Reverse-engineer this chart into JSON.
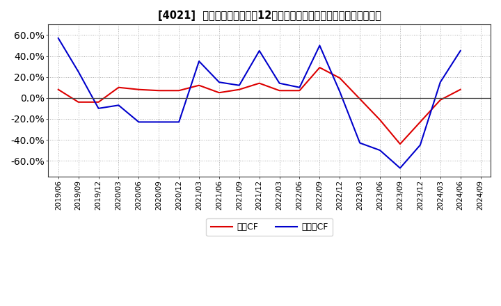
{
  "title": "[4021]  キャッシュフローの12か月移動合計の対前年同期増減率の推移",
  "x_labels": [
    "2019/06",
    "2019/09",
    "2019/12",
    "2020/03",
    "2020/06",
    "2020/09",
    "2020/12",
    "2021/03",
    "2021/06",
    "2021/09",
    "2021/12",
    "2022/03",
    "2022/06",
    "2022/09",
    "2022/12",
    "2023/03",
    "2023/06",
    "2023/09",
    "2023/12",
    "2024/03",
    "2024/06",
    "2024/09"
  ],
  "operating_cf_x": [
    0,
    1,
    2,
    3,
    4,
    5,
    6,
    7,
    8,
    9,
    10,
    11,
    12,
    13,
    14,
    16,
    17,
    19,
    20
  ],
  "operating_cf_y": [
    0.08,
    -0.04,
    -0.04,
    0.1,
    0.08,
    0.07,
    0.07,
    0.12,
    0.05,
    0.08,
    0.14,
    0.07,
    0.07,
    0.29,
    0.19,
    -0.21,
    -0.44,
    -0.02,
    0.08
  ],
  "free_cf_x": [
    0,
    1,
    2,
    3,
    4,
    5,
    6,
    7,
    8,
    9,
    10,
    11,
    12,
    13,
    14,
    15,
    16,
    17,
    18,
    19,
    20
  ],
  "free_cf_y": [
    0.57,
    0.25,
    -0.1,
    -0.07,
    -0.23,
    -0.23,
    -0.23,
    0.35,
    0.15,
    0.12,
    0.45,
    0.14,
    0.1,
    0.5,
    0.06,
    -0.43,
    -0.5,
    -0.67,
    -0.45,
    0.15,
    0.45
  ],
  "operating_color": "#dd0000",
  "free_color": "#0000cc",
  "ylim": [
    -0.75,
    0.7
  ],
  "yticks": [
    -0.6,
    -0.4,
    -0.2,
    0.0,
    0.2,
    0.4,
    0.6
  ],
  "background_color": "#ffffff",
  "plot_bg_color": "#ffffff",
  "legend_label_op": "営業CF",
  "legend_label_fr": "フリーCF",
  "grid_color": "#aaaaaa"
}
